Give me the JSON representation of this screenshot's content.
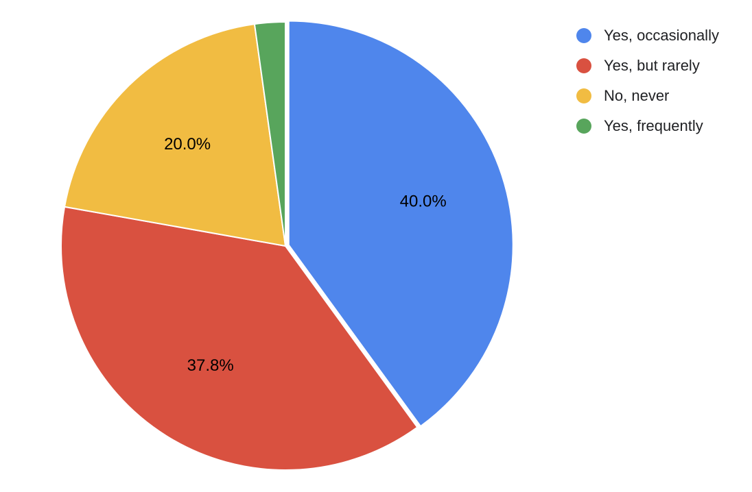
{
  "chart_data": {
    "type": "pie",
    "title": "",
    "categories": [
      "Yes, occasionally",
      "Yes, but rarely",
      "No, never",
      "Yes, frequently"
    ],
    "values": [
      40.0,
      37.8,
      20.0,
      2.2
    ],
    "colors": [
      "#4f86ec",
      "#d95140",
      "#f1bc42",
      "#58a55c"
    ],
    "slice_labels": [
      "40.0%",
      "37.8%",
      "20.0%",
      ""
    ],
    "exploded_slice": "Yes, occasionally",
    "legend_position": "right",
    "legend": [
      {
        "label": "Yes, occasionally",
        "color": "#4f86ec"
      },
      {
        "label": "Yes, but rarely",
        "color": "#d95140"
      },
      {
        "label": "No, never",
        "color": "#f1bc42"
      },
      {
        "label": "Yes, frequently",
        "color": "#58a55c"
      }
    ]
  }
}
